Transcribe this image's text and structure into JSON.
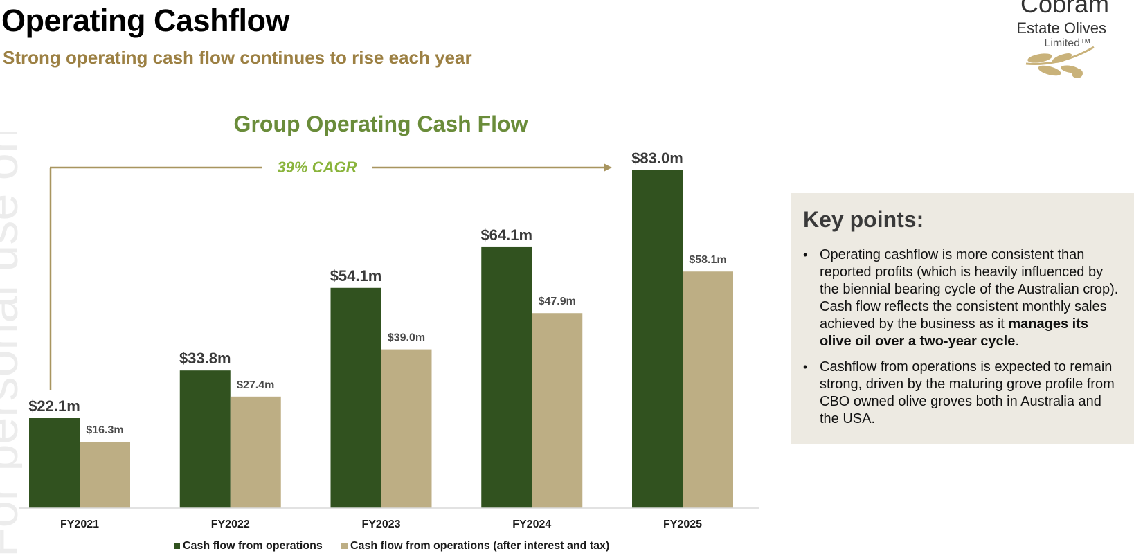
{
  "header": {
    "title": "Operating Cashflow",
    "subtitle": "Strong operating cash flow continues to rise each year"
  },
  "logo": {
    "line1": "Cobram",
    "line2": "Estate Olives",
    "line3": "Limited™"
  },
  "watermark": "For personal use only",
  "colors": {
    "operations": "#31521f",
    "after_interest_tax": "#bdae84",
    "title_green": "#6a8c3a",
    "cagr_green": "#8ab43c",
    "arrow": "#a8955f",
    "subtitle": "#9c8043",
    "panel_bg": "#edeae2"
  },
  "chart_data": {
    "type": "bar",
    "title": "Group Operating Cash Flow",
    "categories": [
      "FY2021",
      "FY2022",
      "FY2023",
      "FY2024",
      "FY2025"
    ],
    "series": [
      {
        "name": "Cash flow from operations",
        "values": [
          22.1,
          33.8,
          54.1,
          64.1,
          83.0
        ],
        "labels": [
          "$22.1m",
          "$33.8m",
          "$54.1m",
          "$64.1m",
          "$83.0m"
        ]
      },
      {
        "name": "Cash flow from operations (after interest and tax)",
        "values": [
          16.3,
          27.4,
          39.0,
          47.9,
          58.1
        ],
        "labels": [
          "$16.3m",
          "$27.4m",
          "$39.0m",
          "$47.9m",
          "$58.1m"
        ]
      }
    ],
    "annotation": "39% CAGR",
    "xlabel": "",
    "ylabel": "",
    "ylim": [
      0,
      85
    ],
    "grid": false,
    "legend": "bottom"
  },
  "key_points": {
    "title": "Key points:",
    "items": [
      {
        "text": "Operating cashflow is more consistent than reported profits (which is heavily influenced by the biennial bearing cycle of the Australian crop). Cash flow reflects the consistent monthly sales achieved by the business as it ",
        "bold": "manages its olive oil over a two-year cycle",
        "after": "."
      },
      {
        "text": "Cashflow from operations is expected to remain strong, driven by the maturing grove profile from CBO owned olive groves both in Australia and the USA.",
        "bold": "",
        "after": ""
      }
    ]
  }
}
